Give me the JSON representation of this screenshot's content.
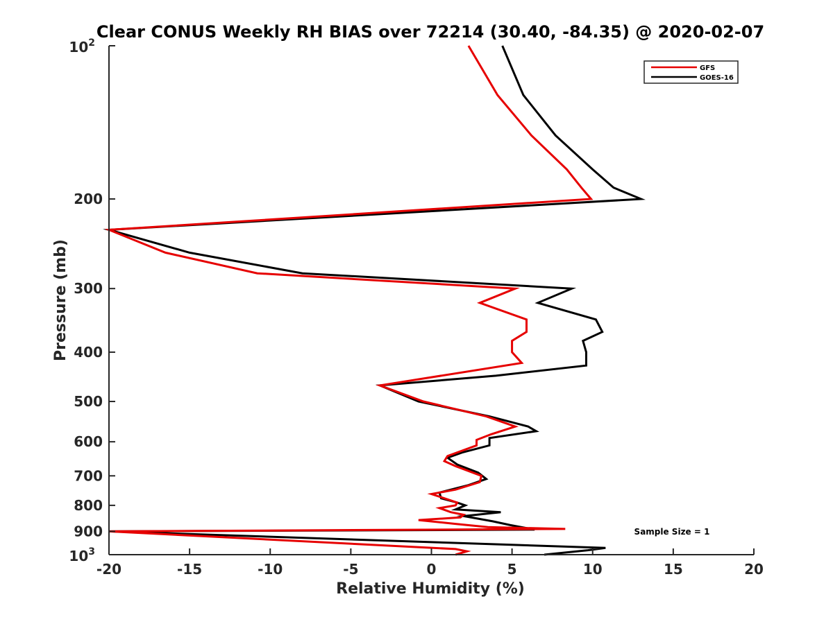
{
  "chart_data": {
    "type": "line",
    "title": "Clear CONUS Weekly RH BIAS over 72214 (30.40, -84.35) @ 2020-02-07",
    "xlabel": "Relative Humidity (%)",
    "ylabel": "Pressure (mb)",
    "xlim": [
      -20,
      20
    ],
    "ylim": [
      100,
      1000
    ],
    "yscale": "log",
    "yreversed": true,
    "xticks": [
      "-20",
      "-15",
      "-10",
      "-5",
      "0",
      "5",
      "10",
      "15",
      "20"
    ],
    "yticks": [
      {
        "value": 100,
        "base": "10",
        "exp": "2"
      },
      {
        "value": 200,
        "label": "200"
      },
      {
        "value": 300,
        "label": "300"
      },
      {
        "value": 400,
        "label": "400"
      },
      {
        "value": 500,
        "label": "500"
      },
      {
        "value": 600,
        "label": "600"
      },
      {
        "value": 700,
        "label": "700"
      },
      {
        "value": 800,
        "label": "800"
      },
      {
        "value": 900,
        "label": "900"
      },
      {
        "value": 1000,
        "base": "10",
        "exp": "3"
      }
    ],
    "legend_position": "top-right",
    "annotation": "Sample Size = 1",
    "series": [
      {
        "name": "GFS",
        "color": "#e60000",
        "points": [
          [
            2.3,
            100
          ],
          [
            4.1,
            125
          ],
          [
            6.2,
            150
          ],
          [
            8.4,
            175
          ],
          [
            9.3,
            190
          ],
          [
            9.9,
            200
          ],
          [
            -20,
            230
          ],
          [
            -16.5,
            255
          ],
          [
            -10.8,
            280
          ],
          [
            5.2,
            300
          ],
          [
            3.0,
            320
          ],
          [
            5.9,
            345
          ],
          [
            5.9,
            365
          ],
          [
            5.0,
            380
          ],
          [
            5.0,
            400
          ],
          [
            5.6,
            420
          ],
          [
            -3.2,
            465
          ],
          [
            -0.5,
            500
          ],
          [
            3.4,
            535
          ],
          [
            5.2,
            560
          ],
          [
            3.7,
            580
          ],
          [
            2.8,
            595
          ],
          [
            2.8,
            610
          ],
          [
            1.0,
            640
          ],
          [
            0.8,
            655
          ],
          [
            1.5,
            670
          ],
          [
            3.1,
            700
          ],
          [
            3.0,
            720
          ],
          [
            1.5,
            745
          ],
          [
            0.0,
            760
          ],
          [
            0.8,
            775
          ],
          [
            1.6,
            790
          ],
          [
            1.5,
            800
          ],
          [
            0.5,
            810
          ],
          [
            1.2,
            825
          ],
          [
            2.0,
            835
          ],
          [
            1.8,
            845
          ],
          [
            -0.8,
            855
          ],
          [
            1.5,
            870
          ],
          [
            3.5,
            883
          ],
          [
            8.3,
            890
          ],
          [
            -20,
            900
          ],
          [
            1.5,
            975
          ],
          [
            2.2,
            985
          ],
          [
            1.5,
            1000
          ]
        ]
      },
      {
        "name": "GOES-16",
        "color": "#000000",
        "points": [
          [
            4.4,
            100
          ],
          [
            5.7,
            125
          ],
          [
            7.7,
            150
          ],
          [
            10.0,
            175
          ],
          [
            11.3,
            190
          ],
          [
            13.0,
            200
          ],
          [
            -20,
            230
          ],
          [
            -15.0,
            255
          ],
          [
            -8.0,
            280
          ],
          [
            8.7,
            300
          ],
          [
            6.6,
            320
          ],
          [
            10.2,
            345
          ],
          [
            10.6,
            365
          ],
          [
            9.4,
            380
          ],
          [
            9.6,
            400
          ],
          [
            9.6,
            425
          ],
          [
            4.0,
            445
          ],
          [
            -3.2,
            465
          ],
          [
            -0.8,
            500
          ],
          [
            3.6,
            535
          ],
          [
            6.0,
            560
          ],
          [
            6.5,
            572
          ],
          [
            3.6,
            590
          ],
          [
            3.6,
            610
          ],
          [
            1.9,
            630
          ],
          [
            1.0,
            645
          ],
          [
            1.6,
            665
          ],
          [
            2.9,
            690
          ],
          [
            3.4,
            710
          ],
          [
            2.3,
            730
          ],
          [
            0.5,
            755
          ],
          [
            0.6,
            775
          ],
          [
            1.6,
            790
          ],
          [
            2.1,
            800
          ],
          [
            1.5,
            815
          ],
          [
            4.3,
            825
          ],
          [
            2.0,
            840
          ],
          [
            3.8,
            860
          ],
          [
            4.9,
            875
          ],
          [
            6.4,
            893
          ],
          [
            -20,
            900
          ],
          [
            10.8,
            970
          ],
          [
            9.7,
            980
          ],
          [
            7.0,
            1000
          ]
        ]
      }
    ]
  }
}
